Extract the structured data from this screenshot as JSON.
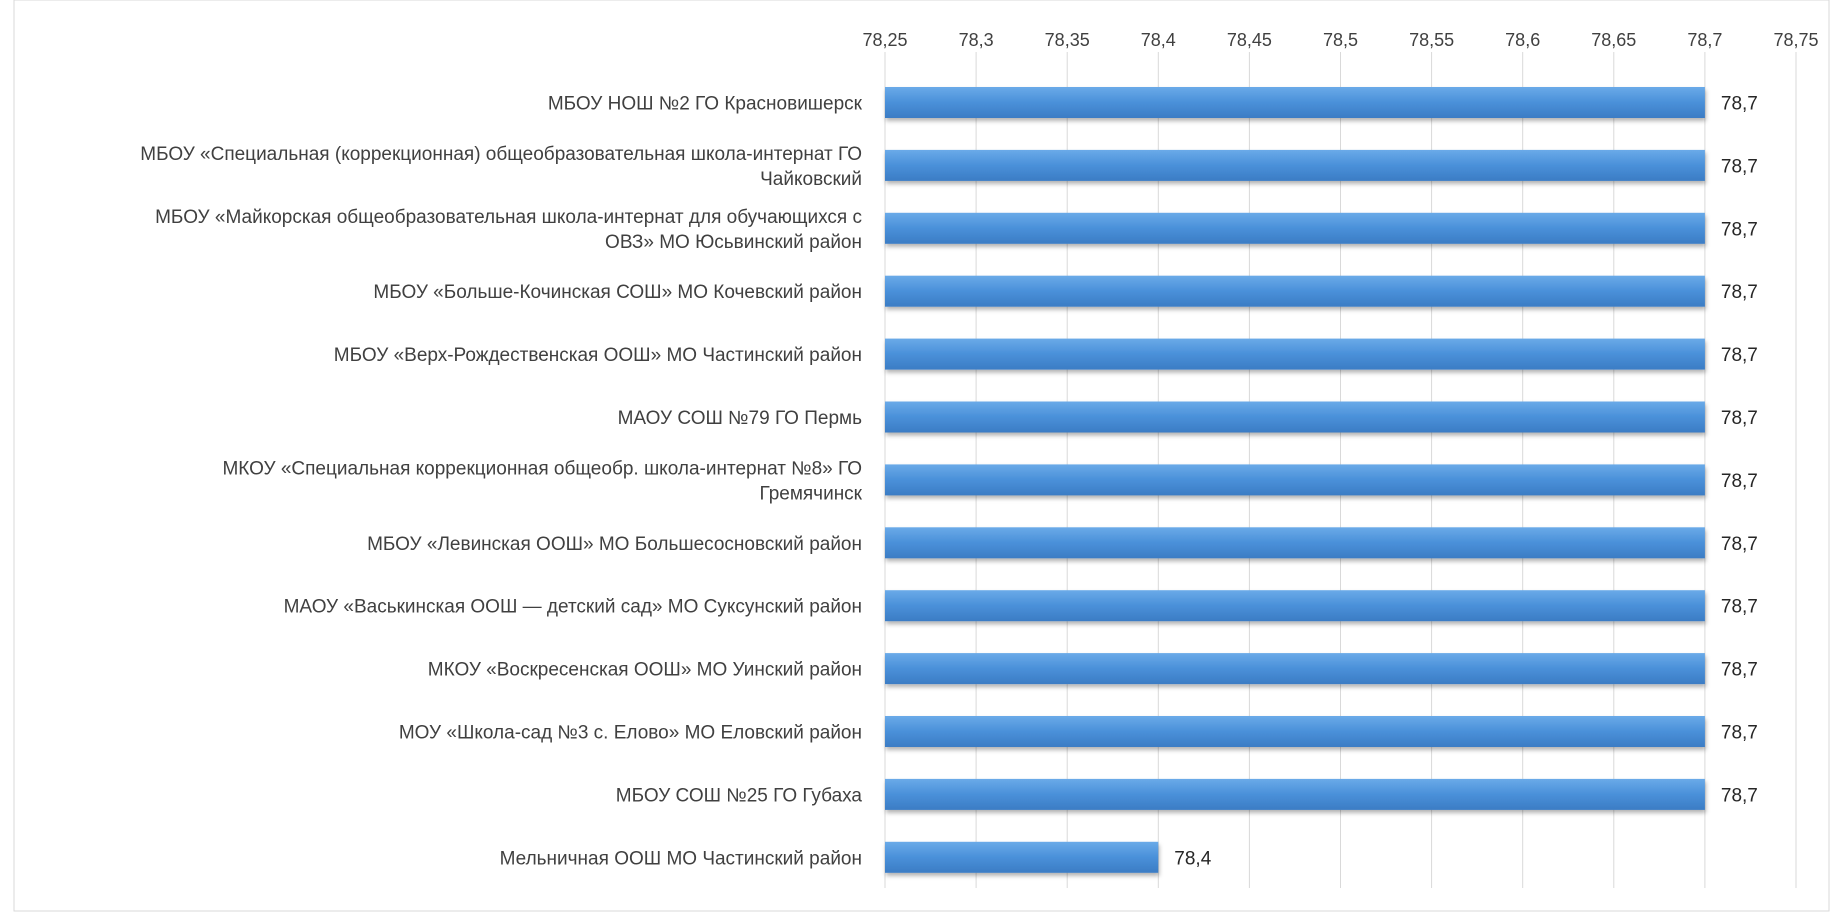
{
  "chart_data": {
    "type": "bar",
    "orientation": "horizontal",
    "title": "",
    "xlabel": "",
    "ylabel": "",
    "xlim": [
      78.25,
      78.75
    ],
    "ticks": [
      "78,25",
      "78,3",
      "78,35",
      "78,4",
      "78,45",
      "78,5",
      "78,55",
      "78,6",
      "78,65",
      "78,7",
      "78,75"
    ],
    "grid": true,
    "legend": "none",
    "bar_color": "#4a90d9",
    "categories": [
      [
        "МБОУ НОШ №2 ГО Красновишерск"
      ],
      [
        "МБОУ «Специальная (коррекционная) общеобразовательная школа-интернат ГО",
        "Чайковский"
      ],
      [
        "МБОУ «Майкорская общеобразовательная школа-интернат для обучающихся с",
        "ОВЗ» МО Юсьвинский район"
      ],
      [
        "МБОУ «Больше-Кочинская СОШ» МО Кочевский район"
      ],
      [
        "МБОУ «Верх-Рождественская ООШ» МО Частинский район"
      ],
      [
        "МАОУ СОШ №79 ГО Пермь"
      ],
      [
        "МКОУ «Специальная коррекционная общеобр. школа-интернат №8» ГО",
        "Гремячинск"
      ],
      [
        "МБОУ «Левинская ООШ» МО Большесосновский район"
      ],
      [
        "МАОУ «Васькинская  ООШ — детский сад» МО Суксунский район"
      ],
      [
        "МКОУ «Воскресенская ООШ» МО Уинский район"
      ],
      [
        "МОУ «Школа-сад №3 с. Елово» МО Еловский район"
      ],
      [
        "МБОУ СОШ №25 ГО Губаха"
      ],
      [
        "Мельничная ООШ МО Частинский район"
      ]
    ],
    "values": [
      78.7,
      78.7,
      78.7,
      78.7,
      78.7,
      78.7,
      78.7,
      78.7,
      78.7,
      78.7,
      78.7,
      78.7,
      78.4
    ],
    "value_labels": [
      "78,7",
      "78,7",
      "78,7",
      "78,7",
      "78,7",
      "78,7",
      "78,7",
      "78,7",
      "78,7",
      "78,7",
      "78,7",
      "78,7",
      "78,4"
    ]
  }
}
